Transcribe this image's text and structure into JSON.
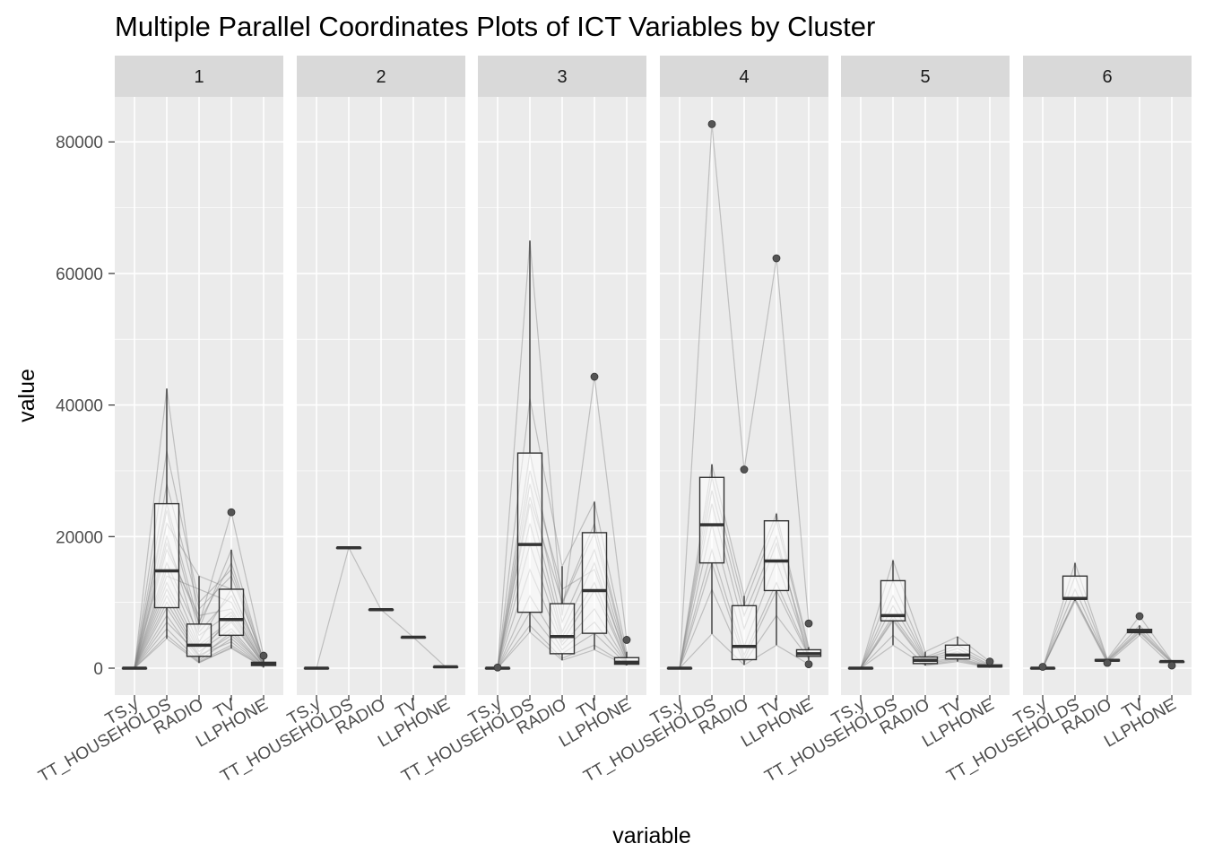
{
  "chart_data": {
    "type": "parallel-coordinates-boxplot",
    "title": "Multiple Parallel Coordinates Plots of ICT Variables by Cluster",
    "xlabel": "variable",
    "ylabel": "value",
    "ylim": [
      -4000,
      90000
    ],
    "y_ticks": [
      0,
      20000,
      40000,
      60000,
      80000
    ],
    "y_tick_labels": [
      "0",
      "20000",
      "40000",
      "60000",
      "80000"
    ],
    "grid": true,
    "variables": [
      "TS.y",
      "TT_HOUSEHOLDS",
      "RADIO",
      "TV",
      "LLPHONE"
    ],
    "colors": {
      "panel_bg": "#ebebeb",
      "strip_bg": "#d9d9d9",
      "grid": "#ffffff",
      "line": "#888888",
      "box_stroke": "#333333",
      "box_fill": "#ffffff",
      "outlier": "#555555"
    },
    "facets": [
      {
        "label": "1",
        "stats": [
          {
            "min": 0,
            "q1": 0,
            "median": 0,
            "q3": 0,
            "max": 0,
            "outliers": []
          },
          {
            "min": 4500,
            "q1": 9200,
            "median": 14800,
            "q3": 25000,
            "max": 42500,
            "outliers": []
          },
          {
            "min": 800,
            "q1": 1800,
            "median": 3500,
            "q3": 6700,
            "max": 14000,
            "outliers": []
          },
          {
            "min": 3000,
            "q1": 5000,
            "median": 7400,
            "q3": 12000,
            "max": 18000,
            "outliers": [
              23700
            ]
          },
          {
            "min": 100,
            "q1": 400,
            "median": 600,
            "q3": 900,
            "max": 1500,
            "outliers": [
              1900
            ]
          }
        ],
        "lines": [
          [
            0,
            42500,
            6000,
            18000,
            900
          ],
          [
            0,
            33000,
            10000,
            15000,
            800
          ],
          [
            0,
            25000,
            6700,
            23700,
            1900
          ],
          [
            0,
            22000,
            14000,
            12000,
            900
          ],
          [
            0,
            20000,
            4000,
            12000,
            1000
          ],
          [
            0,
            18000,
            8000,
            9000,
            600
          ],
          [
            0,
            16000,
            5000,
            8500,
            700
          ],
          [
            0,
            15000,
            3500,
            7400,
            500
          ],
          [
            0,
            14000,
            12000,
            10000,
            600
          ],
          [
            0,
            13000,
            3000,
            7000,
            600
          ],
          [
            0,
            12000,
            2500,
            6000,
            400
          ],
          [
            0,
            11000,
            2000,
            8000,
            500
          ],
          [
            0,
            10000,
            1800,
            5000,
            400
          ],
          [
            0,
            9200,
            1500,
            5500,
            300
          ],
          [
            0,
            8000,
            1200,
            4500,
            300
          ],
          [
            0,
            7000,
            2000,
            4000,
            200
          ],
          [
            0,
            6000,
            1000,
            3500,
            200
          ],
          [
            0,
            5000,
            900,
            3000,
            150
          ],
          [
            0,
            4500,
            800,
            3200,
            100
          ],
          [
            0,
            19000,
            7000,
            16000,
            1200
          ],
          [
            0,
            28000,
            9000,
            14000,
            1300
          ],
          [
            0,
            24000,
            5500,
            11000,
            800
          ]
        ]
      },
      {
        "label": "2",
        "stats": [
          {
            "min": 0,
            "q1": 0,
            "median": 0,
            "q3": 0,
            "max": 0,
            "outliers": []
          },
          {
            "min": 18300,
            "q1": 18300,
            "median": 18300,
            "q3": 18300,
            "max": 18300,
            "outliers": []
          },
          {
            "min": 8900,
            "q1": 8900,
            "median": 8900,
            "q3": 8900,
            "max": 8900,
            "outliers": []
          },
          {
            "min": 4700,
            "q1": 4700,
            "median": 4700,
            "q3": 4700,
            "max": 4700,
            "outliers": []
          },
          {
            "min": 200,
            "q1": 200,
            "median": 200,
            "q3": 200,
            "max": 200,
            "outliers": []
          }
        ],
        "lines": [
          [
            0,
            18300,
            8900,
            4700,
            200
          ]
        ]
      },
      {
        "label": "3",
        "stats": [
          {
            "min": 0,
            "q1": 0,
            "median": 0,
            "q3": 0,
            "max": 0,
            "outliers": [
              100
            ]
          },
          {
            "min": 5500,
            "q1": 8500,
            "median": 18800,
            "q3": 32700,
            "max": 65000,
            "outliers": []
          },
          {
            "min": 1200,
            "q1": 2200,
            "median": 4800,
            "q3": 9800,
            "max": 15500,
            "outliers": []
          },
          {
            "min": 2800,
            "q1": 5300,
            "median": 11800,
            "q3": 20600,
            "max": 25300,
            "outliers": [
              44300
            ]
          },
          {
            "min": 400,
            "q1": 600,
            "median": 900,
            "q3": 1600,
            "max": 2500,
            "outliers": [
              4300
            ]
          }
        ],
        "lines": [
          [
            0,
            65000,
            8000,
            44300,
            4300
          ],
          [
            0,
            41000,
            15500,
            25300,
            2500
          ],
          [
            0,
            32700,
            9800,
            20600,
            1600
          ],
          [
            0,
            28000,
            7000,
            18000,
            1500
          ],
          [
            0,
            25000,
            5500,
            16000,
            1200
          ],
          [
            0,
            22000,
            4800,
            13000,
            1000
          ],
          [
            0,
            18800,
            4000,
            11800,
            900
          ],
          [
            0,
            15000,
            3500,
            9000,
            800
          ],
          [
            0,
            11000,
            2800,
            7000,
            700
          ],
          [
            0,
            8500,
            2200,
            5300,
            600
          ],
          [
            0,
            6500,
            1500,
            3500,
            500
          ],
          [
            0,
            5500,
            1200,
            2800,
            400
          ],
          [
            0,
            26000,
            10000,
            22000,
            1800
          ],
          [
            0,
            30000,
            12000,
            15000,
            1400
          ]
        ]
      },
      {
        "label": "4",
        "stats": [
          {
            "min": 0,
            "q1": 0,
            "median": 0,
            "q3": 0,
            "max": 0,
            "outliers": []
          },
          {
            "min": 5200,
            "q1": 16000,
            "median": 21800,
            "q3": 29000,
            "max": 31000,
            "outliers": [
              82700
            ]
          },
          {
            "min": 500,
            "q1": 1300,
            "median": 3300,
            "q3": 9500,
            "max": 11000,
            "outliers": [
              30200
            ]
          },
          {
            "min": 3500,
            "q1": 11800,
            "median": 16300,
            "q3": 22400,
            "max": 23500,
            "outliers": [
              62300
            ]
          },
          {
            "min": 1200,
            "q1": 1800,
            "median": 2200,
            "q3": 2800,
            "max": 3200,
            "outliers": [
              6800,
              600
            ]
          }
        ],
        "lines": [
          [
            0,
            82700,
            30200,
            62300,
            6800
          ],
          [
            0,
            31000,
            11000,
            23500,
            3200
          ],
          [
            0,
            29000,
            9500,
            22400,
            2800
          ],
          [
            0,
            25000,
            6000,
            19000,
            2500
          ],
          [
            0,
            21800,
            3300,
            16300,
            2200
          ],
          [
            0,
            18000,
            2000,
            13000,
            2000
          ],
          [
            0,
            16000,
            1300,
            11800,
            1800
          ],
          [
            0,
            12000,
            800,
            8000,
            1500
          ],
          [
            0,
            5200,
            500,
            3500,
            600
          ],
          [
            0,
            27000,
            8000,
            20000,
            1200
          ]
        ]
      },
      {
        "label": "5",
        "stats": [
          {
            "min": 0,
            "q1": 0,
            "median": 0,
            "q3": 0,
            "max": 0,
            "outliers": []
          },
          {
            "min": 3500,
            "q1": 7200,
            "median": 8000,
            "q3": 13300,
            "max": 16400,
            "outliers": []
          },
          {
            "min": 400,
            "q1": 700,
            "median": 1200,
            "q3": 1700,
            "max": 2500,
            "outliers": []
          },
          {
            "min": 1000,
            "q1": 1400,
            "median": 2000,
            "q3": 3500,
            "max": 4800,
            "outliers": []
          },
          {
            "min": 100,
            "q1": 200,
            "median": 300,
            "q3": 500,
            "max": 800,
            "outliers": [
              1000
            ]
          }
        ],
        "lines": [
          [
            0,
            16400,
            2500,
            4800,
            1000
          ],
          [
            0,
            13300,
            1700,
            3500,
            800
          ],
          [
            0,
            11000,
            1500,
            3000,
            500
          ],
          [
            0,
            9500,
            1300,
            2500,
            400
          ],
          [
            0,
            8000,
            1200,
            2000,
            300
          ],
          [
            0,
            7500,
            900,
            1600,
            250
          ],
          [
            0,
            7200,
            700,
            1400,
            200
          ],
          [
            0,
            5000,
            500,
            1200,
            150
          ],
          [
            0,
            3500,
            400,
            1000,
            100
          ]
        ]
      },
      {
        "label": "6",
        "stats": [
          {
            "min": 0,
            "q1": 0,
            "median": 0,
            "q3": 0,
            "max": 0,
            "outliers": [
              200
            ]
          },
          {
            "min": 10200,
            "q1": 10500,
            "median": 10600,
            "q3": 14000,
            "max": 16000,
            "outliers": []
          },
          {
            "min": 900,
            "q1": 1100,
            "median": 1200,
            "q3": 1300,
            "max": 1400,
            "outliers": [
              800
            ]
          },
          {
            "min": 5000,
            "q1": 5400,
            "median": 5600,
            "q3": 5900,
            "max": 6500,
            "outliers": [
              7900
            ]
          },
          {
            "min": 800,
            "q1": 900,
            "median": 1000,
            "q3": 1000,
            "max": 1100,
            "outliers": [
              400
            ]
          }
        ],
        "lines": [
          [
            0,
            16000,
            1400,
            7900,
            1100
          ],
          [
            0,
            14000,
            1300,
            6500,
            1000
          ],
          [
            0,
            12000,
            1200,
            5900,
            1000
          ],
          [
            0,
            10600,
            1100,
            5600,
            900
          ],
          [
            0,
            10500,
            1000,
            5400,
            800
          ],
          [
            0,
            10200,
            800,
            5000,
            400
          ]
        ]
      }
    ]
  }
}
